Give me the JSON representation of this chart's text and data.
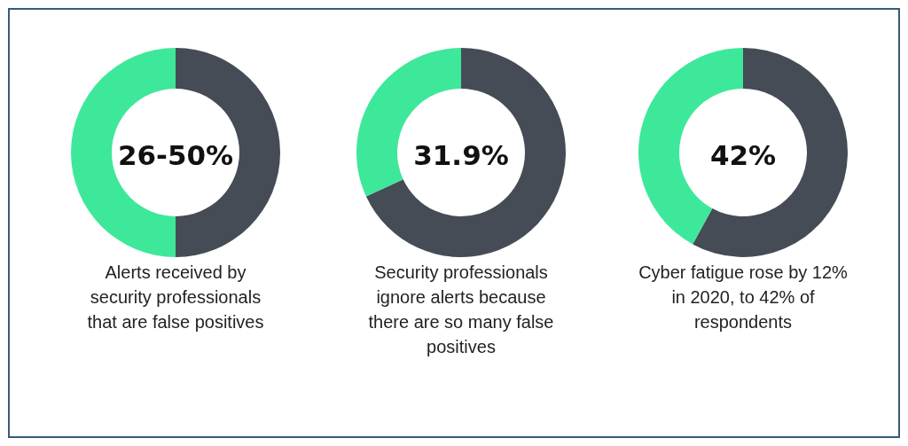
{
  "chart_data": [
    {
      "type": "donut",
      "title": "Alerts received by security professionals that are false positives",
      "annotations": [
        "26-50%"
      ],
      "categories": [
        null,
        null
      ],
      "values": [
        50,
        50
      ],
      "colors": [
        "#464c55",
        "#3ee89a"
      ]
    },
    {
      "type": "donut",
      "title": "Security professionals ignore alerts because there are so many false positives",
      "annotations": [
        "31.9%"
      ],
      "categories": [
        null,
        null
      ],
      "values": [
        68.1,
        31.9
      ],
      "colors": [
        "#464c55",
        "#3ee89a"
      ]
    },
    {
      "type": "donut",
      "title": "Cyber fatigue rose by 12% in 2020, to 42% of respondents",
      "annotations": [
        "42%"
      ],
      "categories": [
        null,
        null
      ],
      "values": [
        58,
        42
      ],
      "colors": [
        "#464c55",
        "#3ee89a"
      ]
    }
  ]
}
